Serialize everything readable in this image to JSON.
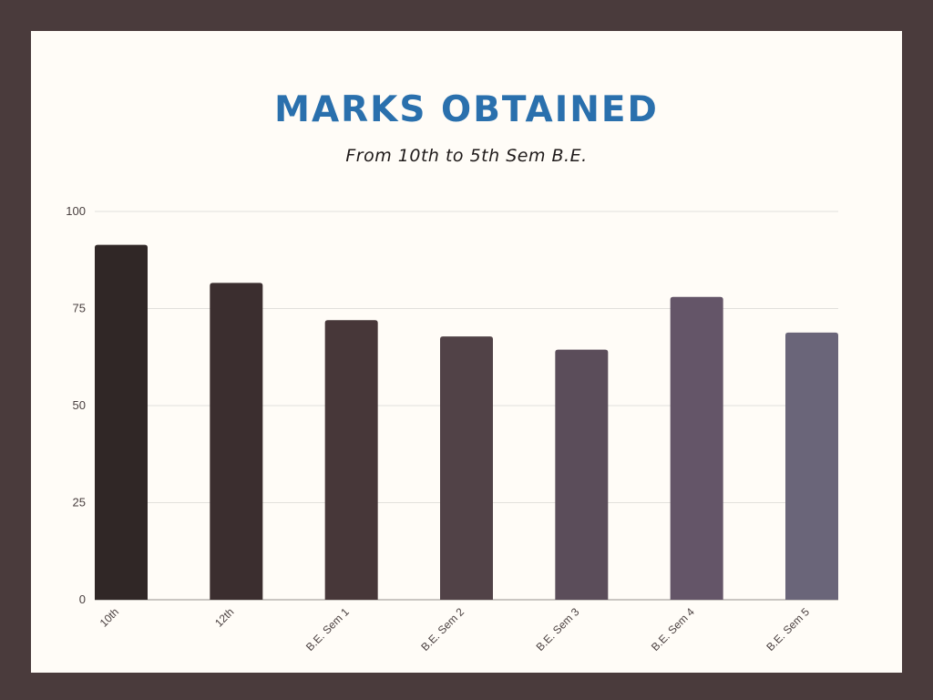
{
  "chart_data": {
    "type": "bar",
    "title": "MARKS OBTAINED",
    "subtitle": "From 10th to 5th Sem B.E.",
    "categories": [
      "10th",
      "12th",
      "B.E. Sem 1",
      "B.E. Sem 2",
      "B.E. Sem 3",
      "B.E. Sem 4",
      "B.E. Sem 5"
    ],
    "values": [
      91.4,
      81.6,
      72,
      67.8,
      64.4,
      78,
      68.8
    ],
    "ylim": [
      0,
      100
    ],
    "yticks": [
      0,
      25,
      50,
      75,
      100
    ],
    "grid": true,
    "bar_colors": [
      "#302726",
      "#3b2e2f",
      "#473739",
      "#514247",
      "#5b4d5a",
      "#645568",
      "#6a6579"
    ],
    "gridline_color": "#e2e0dc",
    "axis_line_color": "#b8b4b0"
  }
}
